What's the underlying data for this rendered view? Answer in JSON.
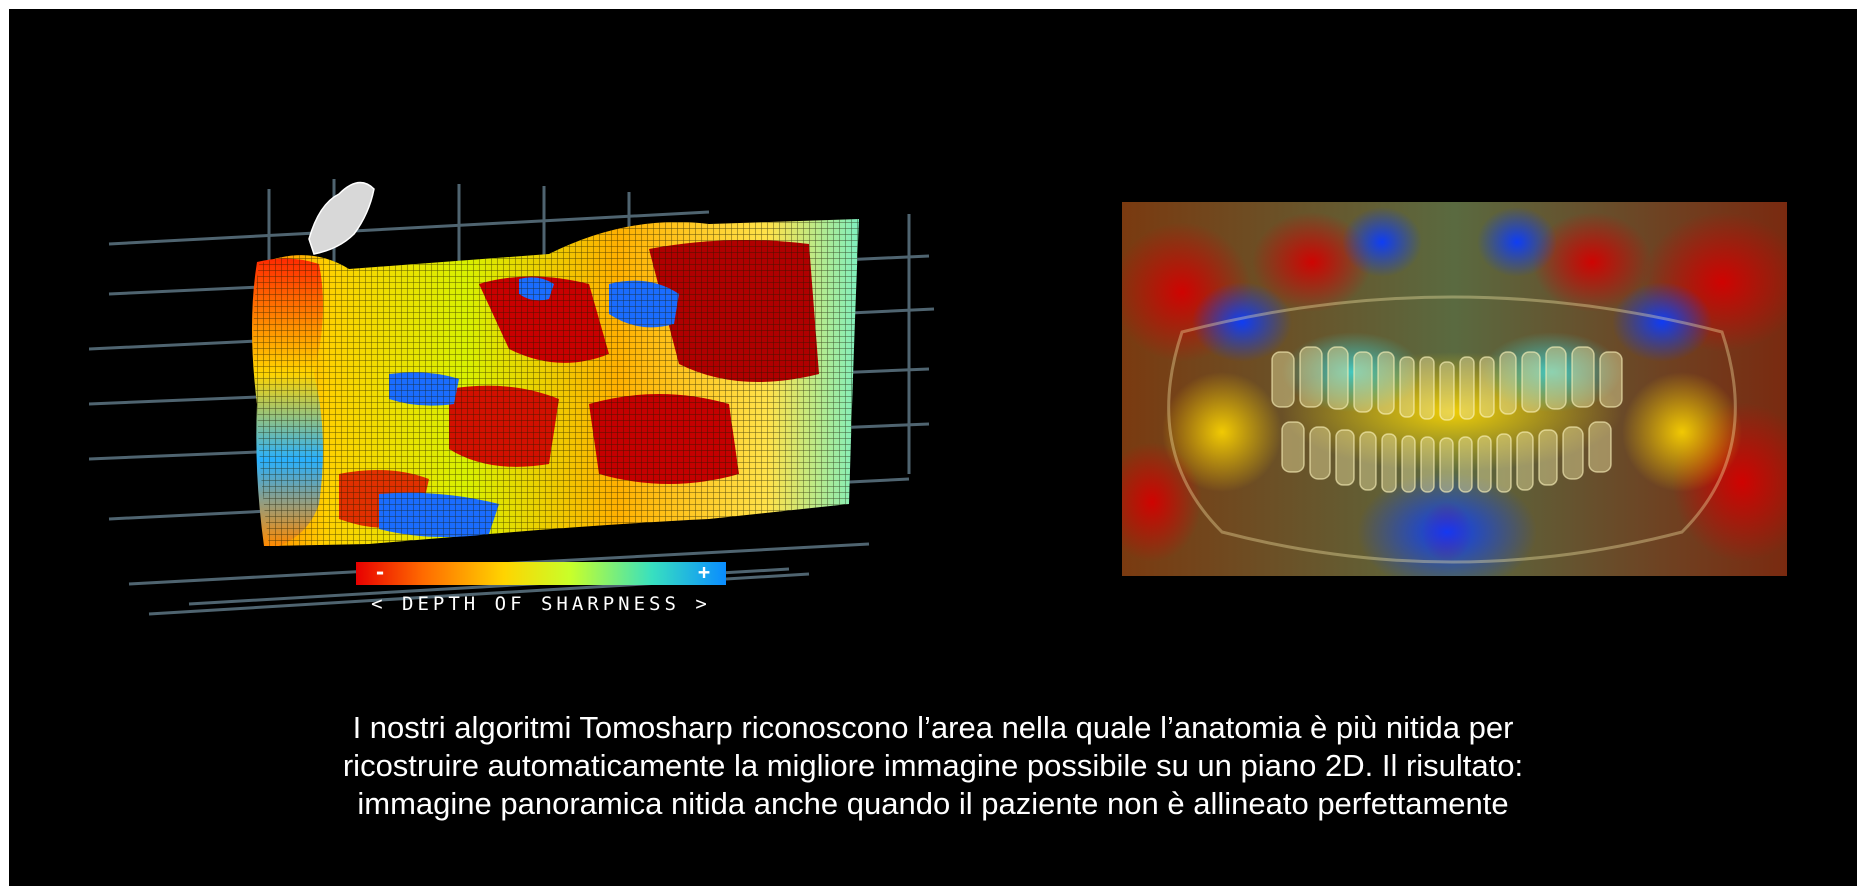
{
  "legend": {
    "minus": "-",
    "plus": "+",
    "label": "< DEPTH OF SHARPNESS >"
  },
  "caption": {
    "lines": [
      "I nostri algoritmi Tomosharp riconoscono l’area nella quale l’anatomia è più nitida per",
      "ricostruire automaticamente la migliore immagine possibile su un piano 2D. Il risultato:",
      "immagine panoramica nitida anche quando il paziente non è allineato perfettamente"
    ]
  },
  "colors": {
    "background": "#000000",
    "sharp_low": "#e80000",
    "sharp_high": "#0a8cff"
  }
}
